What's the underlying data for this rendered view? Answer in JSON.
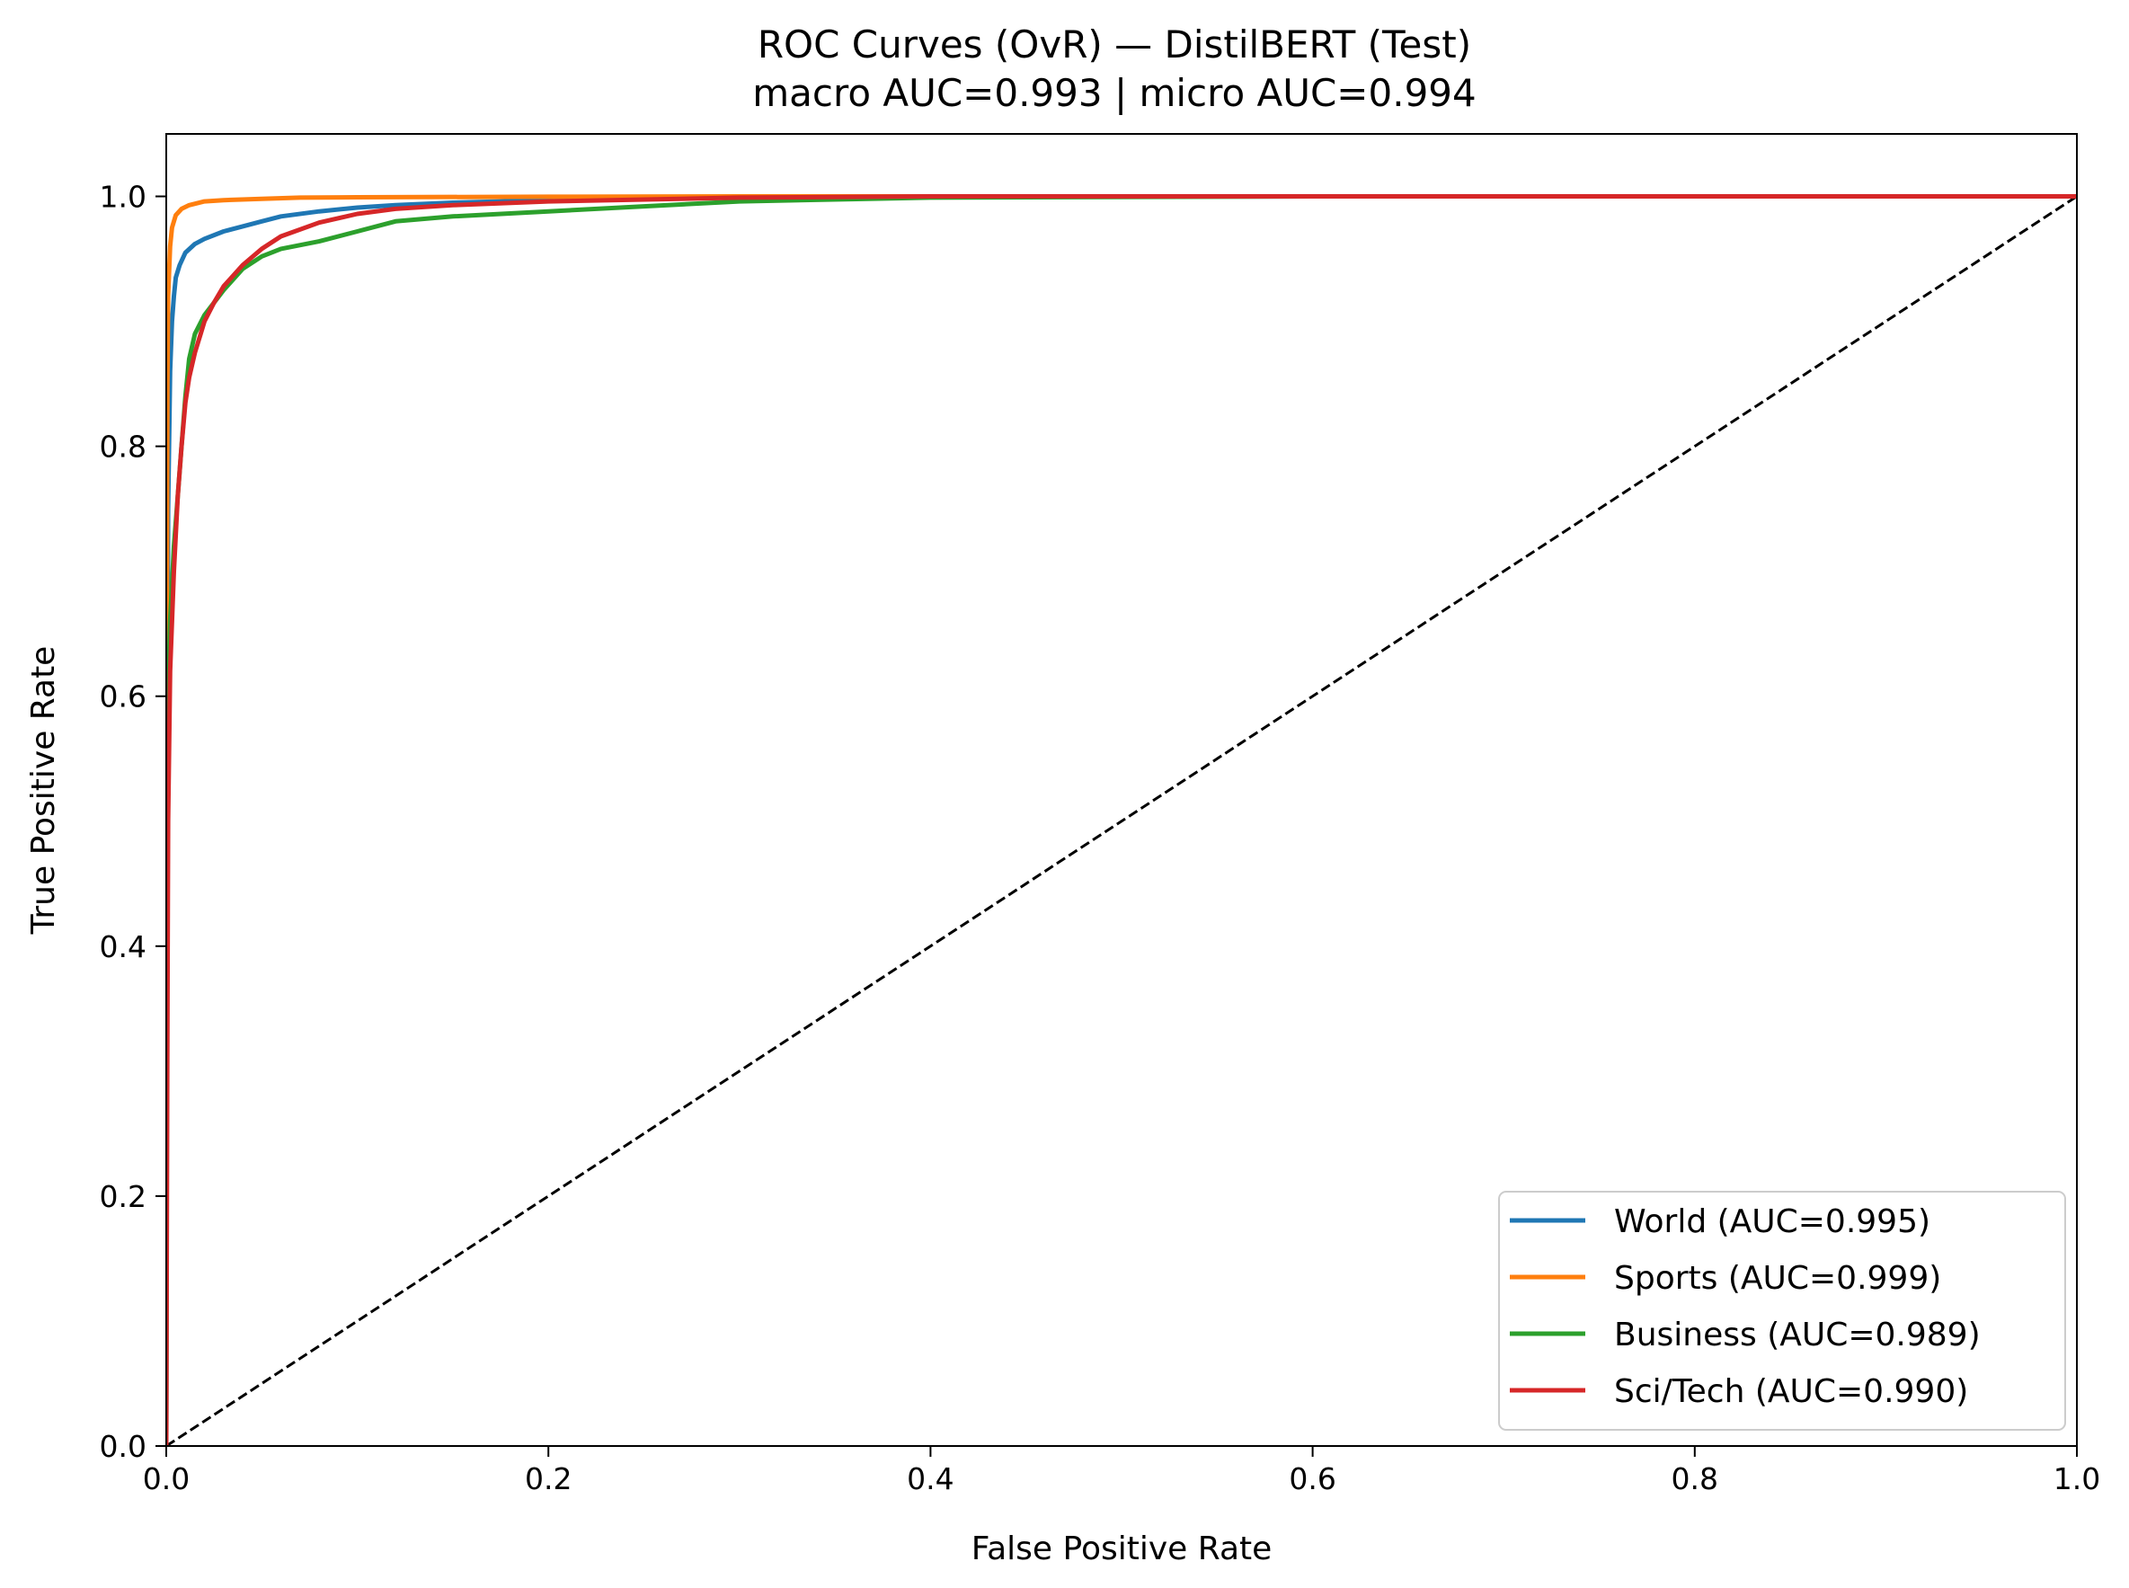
{
  "chart_data": {
    "type": "line",
    "title": "ROC Curves (OvR) — DistilBERT (Test)",
    "subtitle": "macro AUC=0.993 | micro AUC=0.994",
    "xlabel": "False Positive Rate",
    "ylabel": "True Positive Rate",
    "xlim": [
      0.0,
      1.0
    ],
    "ylim": [
      0.0,
      1.05
    ],
    "xticks": [
      "0.0",
      "0.2",
      "0.4",
      "0.6",
      "0.8",
      "1.0"
    ],
    "yticks": [
      "0.0",
      "0.2",
      "0.4",
      "0.6",
      "0.8",
      "1.0"
    ],
    "grid": false,
    "legend_position": "lower-right",
    "series": [
      {
        "name": "World (AUC=0.995)",
        "color": "#1f77b4",
        "x": [
          0,
          0.0005,
          0.001,
          0.002,
          0.003,
          0.004,
          0.005,
          0.007,
          0.01,
          0.015,
          0.02,
          0.03,
          0.04,
          0.05,
          0.06,
          0.08,
          0.1,
          0.12,
          0.15,
          0.2,
          0.3,
          0.4,
          0.6,
          0.8,
          1.0
        ],
        "y": [
          0,
          0.5,
          0.75,
          0.86,
          0.9,
          0.92,
          0.935,
          0.945,
          0.955,
          0.962,
          0.966,
          0.972,
          0.976,
          0.98,
          0.984,
          0.988,
          0.991,
          0.993,
          0.995,
          0.997,
          0.999,
          1.0,
          1.0,
          1.0,
          1.0
        ]
      },
      {
        "name": "Sports (AUC=0.999)",
        "color": "#ff7f0e",
        "x": [
          0,
          0.0003,
          0.0006,
          0.001,
          0.002,
          0.003,
          0.005,
          0.008,
          0.012,
          0.02,
          0.03,
          0.05,
          0.07,
          0.1,
          0.2,
          0.3,
          0.5,
          1.0
        ],
        "y": [
          0,
          0.6,
          0.85,
          0.92,
          0.96,
          0.975,
          0.985,
          0.99,
          0.993,
          0.996,
          0.997,
          0.998,
          0.999,
          0.9993,
          0.9997,
          1.0,
          1.0,
          1.0
        ]
      },
      {
        "name": "Business (AUC=0.989)",
        "color": "#2ca02c",
        "x": [
          0,
          0.0005,
          0.001,
          0.002,
          0.004,
          0.006,
          0.008,
          0.01,
          0.012,
          0.015,
          0.02,
          0.025,
          0.03,
          0.04,
          0.05,
          0.06,
          0.08,
          0.1,
          0.12,
          0.15,
          0.2,
          0.25,
          0.3,
          0.4,
          0.6,
          0.8,
          1.0
        ],
        "y": [
          0,
          0.55,
          0.6,
          0.66,
          0.72,
          0.76,
          0.8,
          0.84,
          0.87,
          0.89,
          0.905,
          0.915,
          0.925,
          0.942,
          0.952,
          0.958,
          0.964,
          0.972,
          0.98,
          0.984,
          0.988,
          0.992,
          0.996,
          0.999,
          1.0,
          1.0,
          1.0
        ]
      },
      {
        "name": "Sci/Tech (AUC=0.990)",
        "color": "#d62728",
        "x": [
          0,
          0.0005,
          0.001,
          0.002,
          0.004,
          0.006,
          0.008,
          0.01,
          0.012,
          0.015,
          0.018,
          0.02,
          0.025,
          0.03,
          0.04,
          0.05,
          0.06,
          0.08,
          0.1,
          0.12,
          0.15,
          0.2,
          0.3,
          0.4,
          0.6,
          0.8,
          1.0
        ],
        "y": [
          0,
          0.3,
          0.5,
          0.62,
          0.7,
          0.76,
          0.8,
          0.835,
          0.855,
          0.875,
          0.89,
          0.9,
          0.915,
          0.928,
          0.945,
          0.958,
          0.968,
          0.979,
          0.986,
          0.99,
          0.993,
          0.996,
          0.999,
          1.0,
          1.0,
          1.0,
          1.0
        ]
      }
    ],
    "reference_line": {
      "style": "dashed",
      "color": "#000000",
      "x": [
        0,
        1
      ],
      "y": [
        0,
        1
      ]
    }
  }
}
